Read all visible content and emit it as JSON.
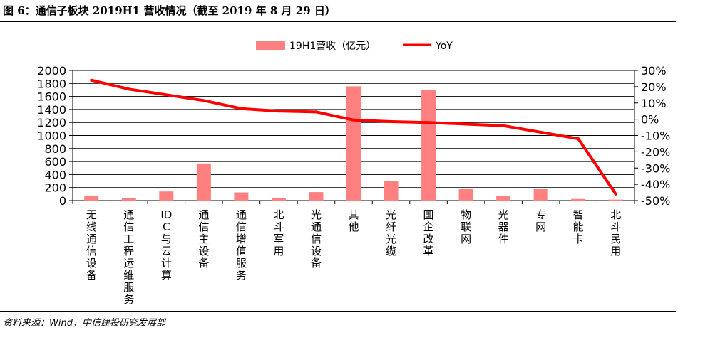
{
  "figure": {
    "title": "图 6：通信子板块 2019H1 营收情况（截至 2019 年 8 月 29 日）",
    "source": "资料来源：Wind，中信建投研究发展部"
  },
  "chart_data": {
    "type": "bar",
    "categories": [
      "无线通信设备",
      "通信工程运维服务",
      "IDC与云计算",
      "通信主设备",
      "通信增值服务",
      "北斗军用",
      "光通信设备",
      "其他",
      "光纤光缆",
      "国企改革",
      "物联网",
      "光器件",
      "专网",
      "智能卡",
      "北斗民用"
    ],
    "series": [
      {
        "name": "19H1营收（亿元）",
        "type": "bar",
        "axis": "left",
        "color": "#ff8080",
        "values": [
          75,
          35,
          140,
          570,
          125,
          40,
          130,
          1755,
          295,
          1705,
          175,
          75,
          175,
          25,
          15
        ]
      },
      {
        "name": "YoY",
        "type": "line",
        "axis": "right",
        "color": "#ff0000",
        "values": [
          24,
          18.5,
          15,
          11.5,
          6.5,
          5,
          4.5,
          -0.5,
          -1.5,
          -2,
          -3,
          -4,
          -8,
          -12,
          -46
        ]
      }
    ],
    "y_left": {
      "min": 0,
      "max": 2000,
      "step": 200,
      "ticks": [
        "0",
        "200",
        "400",
        "600",
        "800",
        "1000",
        "1200",
        "1400",
        "1600",
        "1800",
        "2000"
      ]
    },
    "y_right": {
      "min": -50,
      "max": 30,
      "step": 10,
      "ticks": [
        "-50%",
        "-40%",
        "-30%",
        "-20%",
        "-10%",
        "0%",
        "10%",
        "20%",
        "30%"
      ]
    },
    "grid": true,
    "legend": "top-center"
  }
}
